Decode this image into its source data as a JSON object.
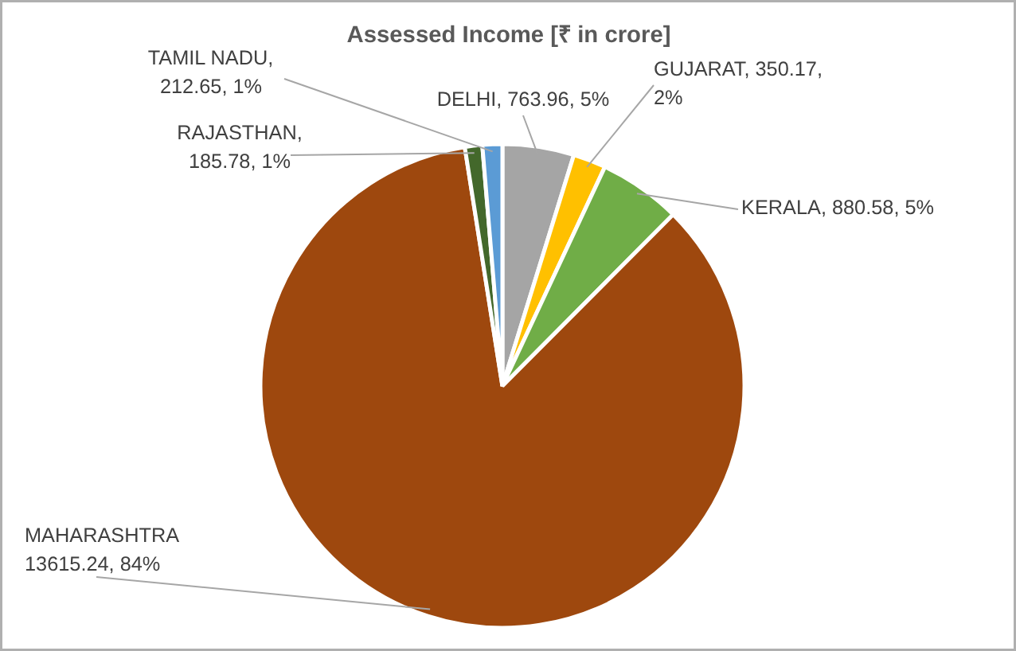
{
  "chart_data": {
    "type": "pie",
    "title": "Assessed Income [₹ in crore]",
    "categories": [
      "DELHI",
      "GUJARAT",
      "KERALA",
      "MAHARASHTRA",
      "RAJASTHAN",
      "TAMIL NADU"
    ],
    "values": [
      763.96,
      350.17,
      880.58,
      13615.24,
      185.78,
      212.65
    ],
    "colors": [
      "#a5a5a5",
      "#ffc000",
      "#70ad47",
      "#9e480e",
      "#43682b",
      "#5b9bd5"
    ],
    "value_labels": [
      ", 763.96, 5%",
      ", 350.17, 2%",
      ", 880.58, 5%",
      "13615.24, 84%",
      ", 185.78, 1%",
      ", 212.65, 1%"
    ]
  }
}
